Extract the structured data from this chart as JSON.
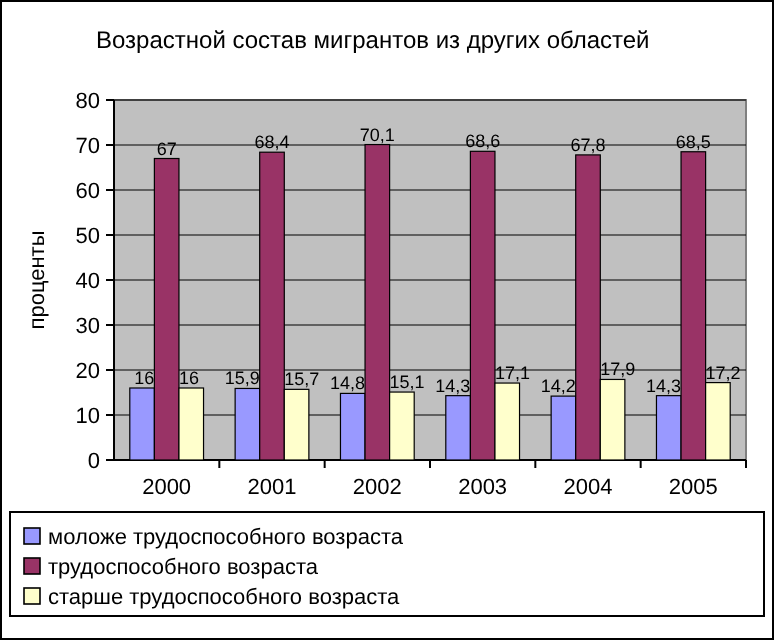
{
  "chart_data": {
    "type": "bar",
    "title": "Возрастной состав мигрантов из других областей",
    "ylabel": "проценты",
    "categories": [
      "2000",
      "2001",
      "2002",
      "2003",
      "2004",
      "2005"
    ],
    "series": [
      {
        "name": "моложе трудоспособного возраста",
        "color": "#9999ff",
        "values": [
          16,
          15.9,
          14.8,
          14.3,
          14.2,
          14.3
        ],
        "value_labels": [
          "16",
          "15,9",
          "14,8",
          "14,3",
          "14,2",
          "14,3"
        ]
      },
      {
        "name": "трудоспособного возраста",
        "color": "#993366",
        "values": [
          67,
          68.4,
          70.1,
          68.6,
          67.8,
          68.5
        ],
        "value_labels": [
          "67",
          "68,4",
          "70,1",
          "68,6",
          "67,8",
          "68,5"
        ]
      },
      {
        "name": "старше трудоспособного возраста",
        "color": "#ffffcc",
        "values": [
          16,
          15.7,
          15.1,
          17.1,
          17.9,
          17.2
        ],
        "value_labels": [
          "16",
          "15,7",
          "15,1",
          "17,1",
          "17,9",
          "17,2"
        ]
      }
    ],
    "ylim": [
      0,
      80
    ],
    "yticks": [
      0,
      10,
      20,
      30,
      40,
      50,
      60,
      70,
      80
    ],
    "grid": "y",
    "legend": "bottom"
  }
}
